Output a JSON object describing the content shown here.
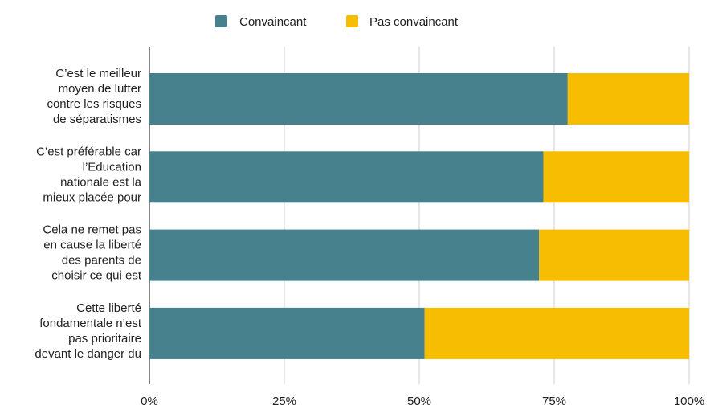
{
  "chart_data": {
    "type": "bar",
    "orientation": "horizontal",
    "stacked": true,
    "percent": true,
    "categories": [
      [
        "C’est le meilleur",
        "moyen de lutter",
        "contre les risques",
        "de séparatismes"
      ],
      [
        "C’est préférable car",
        "l’Education",
        "nationale est la",
        "mieux placée pour"
      ],
      [
        "Cela ne remet pas",
        "en cause la liberté",
        "des parents de",
        "choisir ce qui est"
      ],
      [
        "Cette liberté",
        "fondamentale n’est",
        "pas prioritaire",
        "devant le danger du"
      ]
    ],
    "series": [
      {
        "name": "Convaincant",
        "color": "#47818E",
        "values": [
          77.5,
          73,
          72.2,
          51
        ]
      },
      {
        "name": "Pas convaincant",
        "color": "#F7BD00",
        "values": [
          22.5,
          27,
          27.8,
          49
        ]
      }
    ],
    "xlim": [
      0,
      100
    ],
    "xticks": [
      "0%",
      "25%",
      "50%",
      "75%",
      "100%"
    ],
    "grid": true,
    "legend": "top-center"
  }
}
